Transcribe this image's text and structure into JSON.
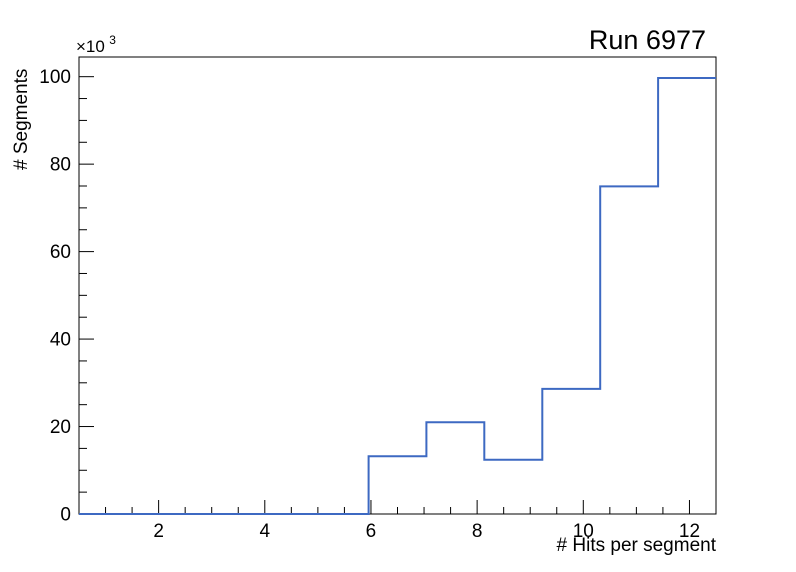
{
  "title": "Run 6977",
  "axes": {
    "x": {
      "label": "# Hits per segment",
      "min": 0.5,
      "max": 12.5,
      "major_ticks": [
        2,
        4,
        6,
        8,
        10,
        12
      ],
      "tick_labels": [
        "2",
        "4",
        "6",
        "8",
        "10",
        "12"
      ],
      "minor_step": 0.5
    },
    "y": {
      "label": "# Segments",
      "min": 0,
      "max": 104500,
      "major_ticks": [
        0,
        20000,
        40000,
        60000,
        80000,
        100000
      ],
      "tick_labels": [
        "0",
        "20",
        "40",
        "60",
        "80",
        "100"
      ],
      "minor_step": 5000,
      "multiplier_base": "×10",
      "multiplier_exp": "3"
    }
  },
  "chart_data": {
    "type": "line",
    "style": "histogram-step",
    "title": "Run 6977",
    "xlabel": "# Hits per segment",
    "ylabel": "# Segments",
    "y_unit_multiplier": "x10^3",
    "xlim": [
      0.5,
      12.5
    ],
    "ylim": [
      0,
      104500
    ],
    "grid": false,
    "legend": "none",
    "bin_edges": [
      0.5,
      1.591,
      2.682,
      3.773,
      4.864,
      5.955,
      7.045,
      8.136,
      9.227,
      10.318,
      11.409,
      12.5
    ],
    "counts": [
      0,
      0,
      0,
      0,
      0,
      13200,
      21000,
      12400,
      28600,
      74900,
      99700
    ]
  },
  "colors": {
    "line": "#3d69c2",
    "frame": "#000000",
    "text": "#000000",
    "background": "#ffffff"
  }
}
